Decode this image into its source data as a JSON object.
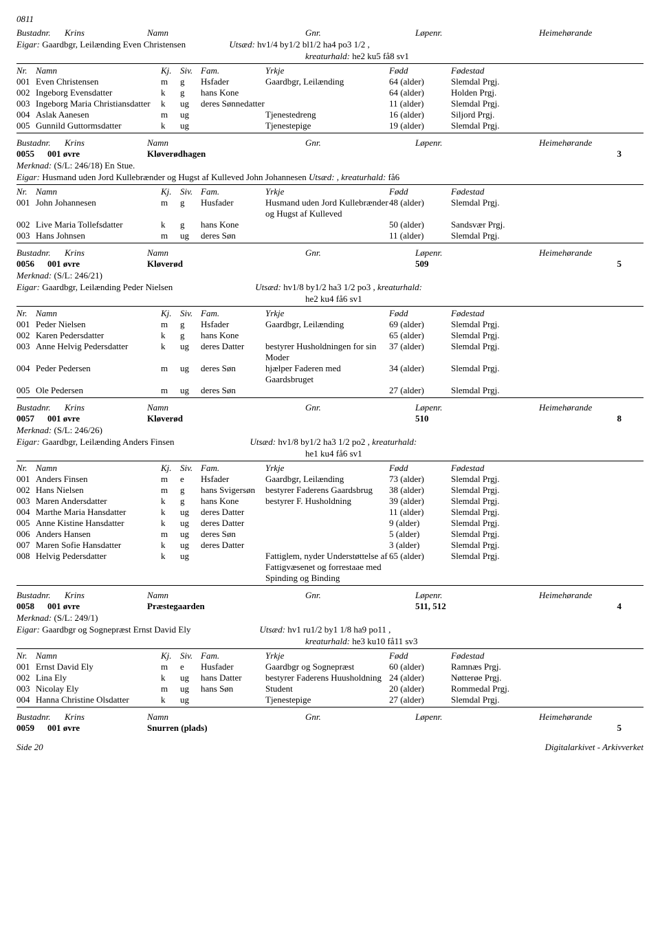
{
  "page_id": "0811",
  "header_labels": {
    "bustad": "Bustadnr.",
    "krins": "Krins",
    "namn": "Namn",
    "gnr": "Gnr.",
    "lopenr": "Løpenr.",
    "heime": "Heimehørande"
  },
  "person_header": {
    "nr": "Nr.",
    "namn": "Namn",
    "kj": "Kj.",
    "siv": "Siv.",
    "fam": "Fam.",
    "yrkje": "Yrkje",
    "fodd": "Fødd",
    "fodestad": "Fødestad"
  },
  "top": {
    "eigar_lbl": "Eigar:",
    "eigar": " Gaardbgr, Leilænding Even Christensen",
    "utsad_lbl": "Utsæd:",
    "utsad": " hv1/4 by1/2 bl1/2 ha4 po3 1/2 ,",
    "kreat_lbl": "kreaturhald:",
    "kreat": " he2 ku5 få8 sv1",
    "rows": [
      {
        "nr": "001",
        "namn": "Even Christensen",
        "kj": "m",
        "siv": "g",
        "fam": "Hsfader",
        "yrkje": "Gaardbgr, Leilænding",
        "fodd": "64 (alder)",
        "fodestad": "Slemdal Prgj."
      },
      {
        "nr": "002",
        "namn": "Ingeborg Evensdatter",
        "kj": "k",
        "siv": "g",
        "fam": "hans Kone",
        "yrkje": "",
        "fodd": "64 (alder)",
        "fodestad": "Holden Prgj."
      },
      {
        "nr": "003",
        "namn": "Ingeborg Maria Christiansdatter",
        "kj": "k",
        "siv": "ug",
        "fam": "deres Sønnedatter",
        "yrkje": "",
        "fodd": "11 (alder)",
        "fodestad": "Slemdal Prgj."
      },
      {
        "nr": "004",
        "namn": "Aslak Aanesen",
        "kj": "m",
        "siv": "ug",
        "fam": "",
        "yrkje": "Tjenestedreng",
        "fodd": "16 (alder)",
        "fodestad": "Siljord Prgj."
      },
      {
        "nr": "005",
        "namn": "Gunnild Guttormsdatter",
        "kj": "k",
        "siv": "ug",
        "fam": "",
        "yrkje": "Tjenestepige",
        "fodd": "19 (alder)",
        "fodestad": "Slemdal Prgj."
      }
    ]
  },
  "b55": {
    "nr": "0055",
    "krins": "001 øvre",
    "namn": "Kløverødhagen",
    "gnr": "",
    "lop": "",
    "heime": "3",
    "merknad_lbl": "Merknad:",
    "merknad": "  (S/L: 246/18) En Stue.",
    "eigar_lbl": "Eigar:",
    "eigar": " Husmand uden Jord Kullebrænder og Hugst af Kulleved John Johannesen",
    "utsad_lbl": "Utsæd:",
    "utsad": "  , ",
    "kreat_lbl": "kreaturhald:",
    "kreat": " få6",
    "rows": [
      {
        "nr": "001",
        "namn": "John Johannesen",
        "kj": "m",
        "siv": "g",
        "fam": "Husfader",
        "yrkje": "Husmand uden Jord Kullebrænder og Hugst af Kulleved",
        "fodd": "48 (alder)",
        "fodestad": "Slemdal Prgj."
      },
      {
        "nr": "002",
        "namn": "Live Maria Tollefsdatter",
        "kj": "k",
        "siv": "g",
        "fam": "hans Kone",
        "yrkje": "",
        "fodd": "50 (alder)",
        "fodestad": "Sandsvær Prgj."
      },
      {
        "nr": "003",
        "namn": "Hans Johnsen",
        "kj": "m",
        "siv": "ug",
        "fam": "deres Søn",
        "yrkje": "",
        "fodd": "11 (alder)",
        "fodestad": "Slemdal Prgj."
      }
    ]
  },
  "b56": {
    "nr": "0056",
    "krins": "001 øvre",
    "namn": "Kløverød",
    "gnr": "",
    "lop": "509",
    "heime": "5",
    "merknad_lbl": "Merknad:",
    "merknad": "  (S/L: 246/21)",
    "eigar_lbl": "Eigar:",
    "eigar": " Gaardbgr, Leilænding Peder Nielsen",
    "utsad_lbl": "Utsæd:",
    "utsad": " hv1/8 by1/2 ha3 1/2 po3 , ",
    "kreat_lbl": "kreaturhald:",
    "kreat2": "he2 ku4 få6 sv1",
    "rows": [
      {
        "nr": "001",
        "namn": "Peder Nielsen",
        "kj": "m",
        "siv": "g",
        "fam": "Hsfader",
        "yrkje": "Gaardbgr, Leilænding",
        "fodd": "69 (alder)",
        "fodestad": "Slemdal Prgj."
      },
      {
        "nr": "002",
        "namn": "Karen Pedersdatter",
        "kj": "k",
        "siv": "g",
        "fam": "hans Kone",
        "yrkje": "",
        "fodd": "65 (alder)",
        "fodestad": "Slemdal Prgj."
      },
      {
        "nr": "003",
        "namn": "Anne Helvig Pedersdatter",
        "kj": "k",
        "siv": "ug",
        "fam": "deres Datter",
        "yrkje": "bestyrer Husholdningen for sin Moder",
        "fodd": "37 (alder)",
        "fodestad": "Slemdal Prgj."
      },
      {
        "nr": "004",
        "namn": "Peder Pedersen",
        "kj": "m",
        "siv": "ug",
        "fam": "deres Søn",
        "yrkje": "hjælper Faderen med Gaardsbruget",
        "fodd": "34 (alder)",
        "fodestad": "Slemdal Prgj."
      },
      {
        "nr": "005",
        "namn": "Ole Pedersen",
        "kj": "m",
        "siv": "ug",
        "fam": "deres Søn",
        "yrkje": "",
        "fodd": "27 (alder)",
        "fodestad": "Slemdal Prgj."
      }
    ]
  },
  "b57": {
    "nr": "0057",
    "krins": "001 øvre",
    "namn": "Kløverød",
    "gnr": "",
    "lop": "510",
    "heime": "8",
    "merknad_lbl": "Merknad:",
    "merknad": "  (S/L: 246/26)",
    "eigar_lbl": "Eigar:",
    "eigar": " Gaardbgr, Leilænding Anders Finsen",
    "utsad_lbl": "Utsæd:",
    "utsad": " hv1/8 by1/2 ha3 1/2 po2 , ",
    "kreat_lbl": "kreaturhald:",
    "kreat2": "he1 ku4 få6 sv1",
    "rows": [
      {
        "nr": "001",
        "namn": "Anders Finsen",
        "kj": "m",
        "siv": "e",
        "fam": "Hsfader",
        "yrkje": "Gaardbgr, Leilænding",
        "fodd": "73 (alder)",
        "fodestad": "Slemdal Prgj."
      },
      {
        "nr": "002",
        "namn": "Hans Nielsen",
        "kj": "m",
        "siv": "g",
        "fam": "hans Svigersøn",
        "yrkje": "bestyrer Faderens Gaardsbrug",
        "fodd": "38 (alder)",
        "fodestad": "Slemdal Prgj."
      },
      {
        "nr": "003",
        "namn": "Maren Andersdatter",
        "kj": "k",
        "siv": "g",
        "fam": "hans Kone",
        "yrkje": "bestyrer F. Husholdning",
        "fodd": "39 (alder)",
        "fodestad": "Slemdal Prgj."
      },
      {
        "nr": "004",
        "namn": "Marthe Maria Hansdatter",
        "kj": "k",
        "siv": "ug",
        "fam": "deres Datter",
        "yrkje": "",
        "fodd": "11 (alder)",
        "fodestad": "Slemdal Prgj."
      },
      {
        "nr": "005",
        "namn": "Anne Kistine Hansdatter",
        "kj": "k",
        "siv": "ug",
        "fam": "deres Datter",
        "yrkje": "",
        "fodd": "9 (alder)",
        "fodestad": "Slemdal Prgj."
      },
      {
        "nr": "006",
        "namn": "Anders Hansen",
        "kj": "m",
        "siv": "ug",
        "fam": "deres Søn",
        "yrkje": "",
        "fodd": "5 (alder)",
        "fodestad": "Slemdal Prgj."
      },
      {
        "nr": "007",
        "namn": "Maren Sofie Hansdatter",
        "kj": "k",
        "siv": "ug",
        "fam": "deres Datter",
        "yrkje": "",
        "fodd": "3 (alder)",
        "fodestad": "Slemdal Prgj."
      },
      {
        "nr": "008",
        "namn": "Helvig Pedersdatter",
        "kj": "k",
        "siv": "ug",
        "fam": "",
        "yrkje": "Fattiglem, nyder Understøttelse af Fattigvæsenet og forrestaae med Spinding og Binding",
        "fodd": "65 (alder)",
        "fodestad": "Slemdal Prgj."
      }
    ]
  },
  "b58": {
    "nr": "0058",
    "krins": "001 øvre",
    "namn": "Præstegaarden",
    "gnr": "",
    "lop": "511, 512",
    "heime": "4",
    "merknad_lbl": "Merknad:",
    "merknad": "  (S/L: 249/1)",
    "eigar_lbl": "Eigar:",
    "eigar": " Gaardbgr og Sognepræst Ernst David Ely",
    "utsad_lbl": "Utsæd:",
    "utsad": " hv1 ru1/2 by1 1/8 ha9 po11 ,",
    "kreat_lbl": "kreaturhald:",
    "kreat2": " he3 ku10 få11 sv3",
    "rows": [
      {
        "nr": "001",
        "namn": "Ernst David Ely",
        "kj": "m",
        "siv": "e",
        "fam": "Husfader",
        "yrkje": "Gaardbgr og Sognepræst",
        "fodd": "60 (alder)",
        "fodestad": "Ramnæs Prgj."
      },
      {
        "nr": "002",
        "namn": "Lina Ely",
        "kj": "k",
        "siv": "ug",
        "fam": "hans Datter",
        "yrkje": "bestyrer Faderens Huusholdning",
        "fodd": "24 (alder)",
        "fodestad": "Nøtterøe Prgj."
      },
      {
        "nr": "003",
        "namn": "Nicolay Ely",
        "kj": "m",
        "siv": "ug",
        "fam": "hans Søn",
        "yrkje": "Student",
        "fodd": "20 (alder)",
        "fodestad": "Rommedal Prgj."
      },
      {
        "nr": "004",
        "namn": "Hanna Christine Olsdatter",
        "kj": "k",
        "siv": "ug",
        "fam": "",
        "yrkje": "Tjenestepige",
        "fodd": "27 (alder)",
        "fodestad": "Slemdal Prgj."
      }
    ]
  },
  "b59": {
    "nr": "0059",
    "krins": "001 øvre",
    "namn": "Snurren (plads)",
    "gnr": "",
    "lop": "",
    "heime": "5"
  },
  "footer": {
    "left": "Side 20",
    "right": "Digitalarkivet - Arkivverket"
  }
}
